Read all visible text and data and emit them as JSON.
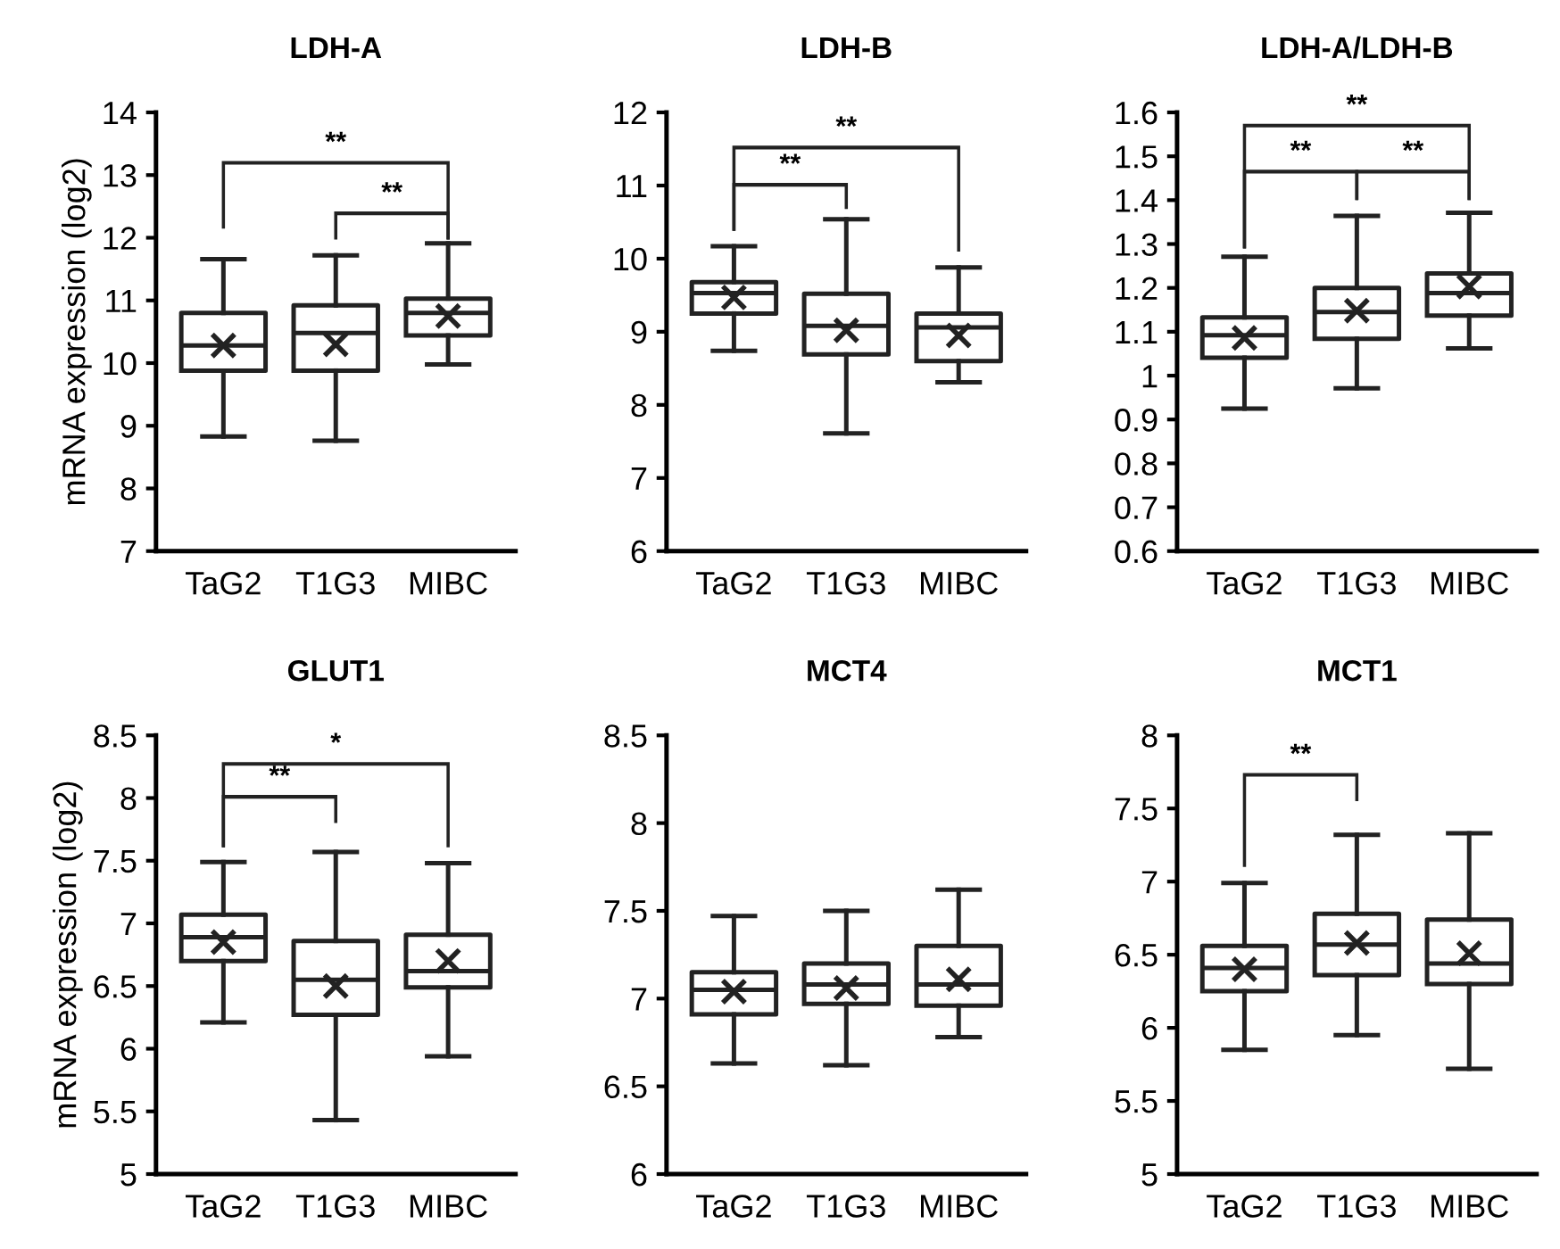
{
  "chart_data": [
    {
      "type": "box",
      "title": "LDH-A",
      "ylabel": "mRNA expression (log2)",
      "categories": [
        "TaG2",
        "T1G3",
        "MIBC"
      ],
      "ylim": [
        7,
        14
      ],
      "yticks": [
        7,
        8,
        9,
        10,
        11,
        12,
        13,
        14
      ],
      "marker": "cross",
      "annotations": [
        "**",
        "**"
      ],
      "boxes": [
        {
          "low": 8.83,
          "q1": 9.88,
          "median": 10.28,
          "q3": 10.8,
          "high": 11.66,
          "mean": 10.28
        },
        {
          "low": 8.76,
          "q1": 9.88,
          "median": 10.48,
          "q3": 10.92,
          "high": 11.72,
          "mean": 10.3
        },
        {
          "low": 9.98,
          "q1": 10.44,
          "median": 10.8,
          "q3": 11.03,
          "high": 11.91,
          "mean": 10.75
        }
      ]
    },
    {
      "type": "box",
      "title": "LDH-B",
      "categories": [
        "TaG2",
        "T1G3",
        "MIBC"
      ],
      "ylim": [
        6,
        12
      ],
      "yticks": [
        6,
        7,
        8,
        9,
        10,
        11,
        12
      ],
      "marker": "cross",
      "annotations": [
        "**",
        "**"
      ],
      "boxes": [
        {
          "low": 8.74,
          "q1": 9.25,
          "median": 9.53,
          "q3": 9.68,
          "high": 10.17,
          "mean": 9.47
        },
        {
          "low": 7.61,
          "q1": 8.69,
          "median": 9.08,
          "q3": 9.52,
          "high": 10.54,
          "mean": 9.02
        },
        {
          "low": 8.31,
          "q1": 8.6,
          "median": 9.06,
          "q3": 9.25,
          "high": 9.88,
          "mean": 8.95
        }
      ]
    },
    {
      "type": "box",
      "title": "LDH-A/LDH-B",
      "categories": [
        "TaG2",
        "T1G3",
        "MIBC"
      ],
      "ylim": [
        0.6,
        1.6
      ],
      "yticks": [
        0.6,
        0.7,
        0.8,
        0.9,
        1,
        1.1,
        1.2,
        1.3,
        1.4,
        1.5,
        1.6
      ],
      "marker": "cross",
      "annotations": [
        "**",
        "**",
        "**"
      ],
      "boxes": [
        {
          "low": 0.925,
          "q1": 1.041,
          "median": 1.092,
          "q3": 1.133,
          "high": 1.271,
          "mean": 1.086
        },
        {
          "low": 0.971,
          "q1": 1.084,
          "median": 1.145,
          "q3": 1.2,
          "high": 1.364,
          "mean": 1.148
        },
        {
          "low": 1.062,
          "q1": 1.137,
          "median": 1.188,
          "q3": 1.233,
          "high": 1.371,
          "mean": 1.203
        }
      ]
    },
    {
      "type": "box",
      "title": "GLUT1",
      "ylabel": "mRNA expression (log2)",
      "categories": [
        "TaG2",
        "T1G3",
        "MIBC"
      ],
      "ylim": [
        5,
        8.5
      ],
      "yticks": [
        5,
        5.5,
        6,
        6.5,
        7,
        7.5,
        8,
        8.5
      ],
      "marker": "cross",
      "annotations": [
        "*",
        "**"
      ],
      "boxes": [
        {
          "low": 6.21,
          "q1": 6.7,
          "median": 6.89,
          "q3": 7.07,
          "high": 7.49,
          "mean": 6.85
        },
        {
          "low": 5.43,
          "q1": 6.27,
          "median": 6.55,
          "q3": 6.86,
          "high": 7.57,
          "mean": 6.5
        },
        {
          "low": 5.94,
          "q1": 6.49,
          "median": 6.62,
          "q3": 6.91,
          "high": 7.48,
          "mean": 6.7
        }
      ]
    },
    {
      "type": "box",
      "title": "MCT4",
      "categories": [
        "TaG2",
        "T1G3",
        "MIBC"
      ],
      "ylim": [
        6,
        8.5
      ],
      "yticks": [
        6,
        6.5,
        7,
        7.5,
        8,
        8.5
      ],
      "marker": "cross",
      "boxes": [
        {
          "low": 6.63,
          "q1": 6.91,
          "median": 7.05,
          "q3": 7.15,
          "high": 7.47,
          "mean": 7.04
        },
        {
          "low": 6.62,
          "q1": 6.97,
          "median": 7.08,
          "q3": 7.2,
          "high": 7.5,
          "mean": 7.06
        },
        {
          "low": 6.78,
          "q1": 6.96,
          "median": 7.08,
          "q3": 7.3,
          "high": 7.62,
          "mean": 7.11
        }
      ]
    },
    {
      "type": "box",
      "title": "MCT1",
      "categories": [
        "TaG2",
        "T1G3",
        "MIBC"
      ],
      "ylim": [
        5,
        8
      ],
      "yticks": [
        5,
        5.5,
        6,
        6.5,
        7,
        7.5,
        8
      ],
      "marker": "cross",
      "annotations": [
        "**"
      ],
      "boxes": [
        {
          "low": 5.85,
          "q1": 6.25,
          "median": 6.41,
          "q3": 6.56,
          "high": 6.99,
          "mean": 6.4
        },
        {
          "low": 5.95,
          "q1": 6.36,
          "median": 6.57,
          "q3": 6.78,
          "high": 7.32,
          "mean": 6.58
        },
        {
          "low": 5.72,
          "q1": 6.3,
          "median": 6.44,
          "q3": 6.74,
          "high": 7.33,
          "mean": 6.51
        }
      ]
    }
  ]
}
